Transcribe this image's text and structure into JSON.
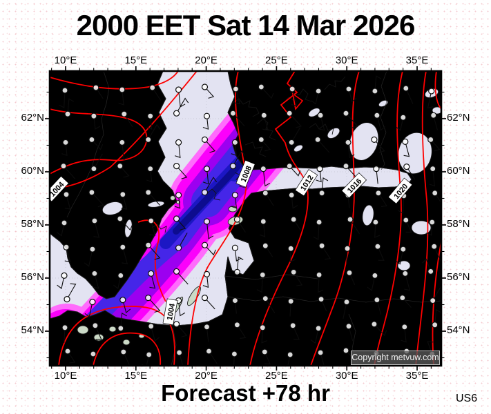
{
  "title": "2000 EET Sat 14 Mar 2026",
  "footer": {
    "forecast_label": "Forecast +78 hr",
    "model_label": "US6"
  },
  "map": {
    "copyright": "Copyright metvuw.com",
    "isobar_labels": [
      {
        "text": "1004"
      },
      {
        "text": "1004"
      },
      {
        "text": "1008"
      },
      {
        "text": "1012"
      },
      {
        "text": "1016"
      },
      {
        "text": "1020"
      }
    ],
    "colors": {
      "isobar_red": "#ff0000",
      "sea_lavender": "#e3e3f2",
      "land_green": "#cbdac7",
      "coast_black": "#1a1a1a",
      "precip_scale": [
        "#ff6bfc",
        "#fb00fb",
        "#9c00f0",
        "#4526e8",
        "#1c17c4",
        "#0d0c8f"
      ]
    }
  },
  "axes": {
    "top_lon": [
      "10°E",
      "15°E",
      "20°E",
      "25°E",
      "30°E",
      "35°E"
    ],
    "bottom_lon": [
      "10°E",
      "15°E",
      "20°E",
      "25°E",
      "30°E",
      "35°E"
    ],
    "left_lat": [
      "62°N",
      "60°N",
      "58°N",
      "56°N",
      "54°N"
    ],
    "right_lat": [
      "62°N",
      "60°N",
      "58°N",
      "56°N",
      "54°N"
    ]
  }
}
